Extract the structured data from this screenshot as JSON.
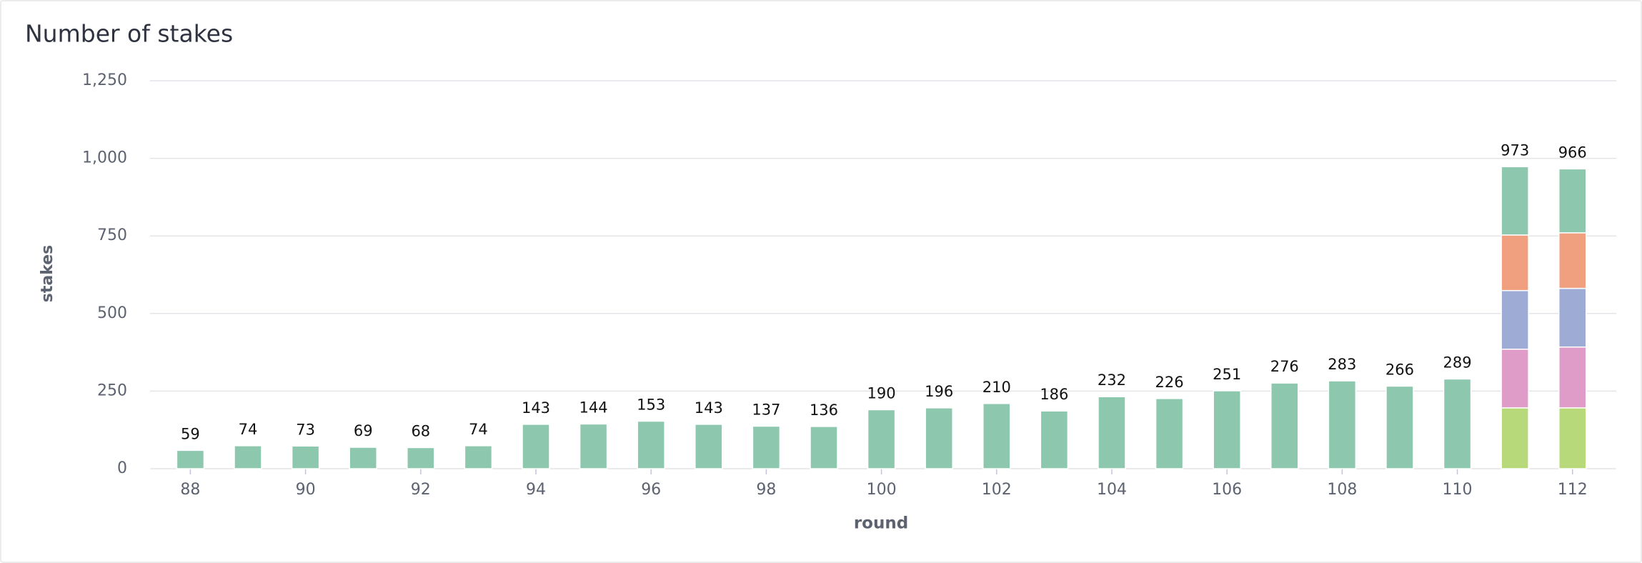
{
  "chart_data": {
    "type": "bar",
    "stacked": true,
    "title": "Number of stakes",
    "x_label": "round",
    "y_label": "stakes",
    "x": [
      88,
      89,
      90,
      91,
      92,
      93,
      94,
      95,
      96,
      97,
      98,
      99,
      100,
      101,
      102,
      103,
      104,
      105,
      106,
      107,
      108,
      109,
      110,
      111,
      112
    ],
    "xlim": [
      87.3,
      112.76
    ],
    "xticks": [
      88,
      90,
      92,
      94,
      96,
      98,
      100,
      102,
      104,
      106,
      108,
      110,
      112
    ],
    "ylim": [
      0,
      1250
    ],
    "yticks": [
      0,
      250,
      500,
      750,
      {
        "value": 1000,
        "label": "1,000"
      },
      {
        "value": 1250,
        "label": "1,250"
      }
    ],
    "grid": true,
    "series": [
      {
        "color": "#b8d97a",
        "values": [
          null,
          null,
          null,
          null,
          null,
          null,
          null,
          null,
          null,
          null,
          null,
          null,
          null,
          null,
          null,
          null,
          null,
          null,
          null,
          null,
          null,
          null,
          null,
          196,
          196
        ]
      },
      {
        "color": "#e09cc8",
        "values": [
          null,
          null,
          null,
          null,
          null,
          null,
          null,
          null,
          null,
          null,
          null,
          null,
          null,
          null,
          null,
          null,
          null,
          null,
          null,
          null,
          null,
          null,
          null,
          189,
          196
        ]
      },
      {
        "color": "#9eabd5",
        "values": [
          null,
          null,
          null,
          null,
          null,
          null,
          null,
          null,
          null,
          null,
          null,
          null,
          null,
          null,
          null,
          null,
          null,
          null,
          null,
          null,
          null,
          null,
          null,
          189,
          189
        ]
      },
      {
        "color": "#f0a07e",
        "values": [
          null,
          null,
          null,
          null,
          null,
          null,
          null,
          null,
          null,
          null,
          null,
          null,
          null,
          null,
          null,
          null,
          null,
          null,
          null,
          null,
          null,
          null,
          null,
          179,
          179
        ]
      },
      {
        "color": "#8cc7ae",
        "values": [
          59,
          74,
          73,
          69,
          68,
          74,
          143,
          144,
          153,
          143,
          137,
          136,
          190,
          196,
          210,
          186,
          232,
          226,
          251,
          276,
          283,
          266,
          289,
          220,
          206
        ]
      }
    ],
    "totals": [
      59,
      74,
      73,
      69,
      68,
      74,
      143,
      144,
      153,
      143,
      137,
      136,
      190,
      196,
      210,
      186,
      232,
      226,
      251,
      276,
      283,
      266,
      289,
      973,
      966
    ]
  }
}
